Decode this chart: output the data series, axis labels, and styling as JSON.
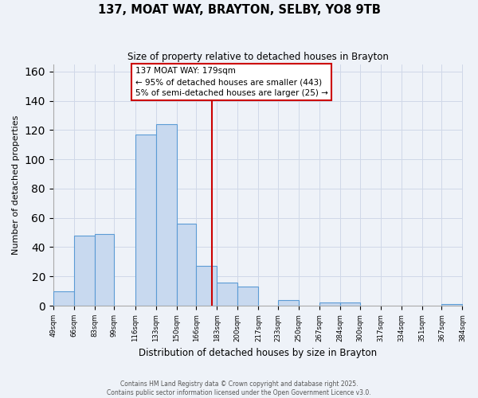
{
  "title": "137, MOAT WAY, BRAYTON, SELBY, YO8 9TB",
  "subtitle": "Size of property relative to detached houses in Brayton",
  "xlabel": "Distribution of detached houses by size in Brayton",
  "ylabel": "Number of detached properties",
  "bar_edges": [
    49,
    66,
    83,
    99,
    116,
    133,
    150,
    166,
    183,
    200,
    217,
    233,
    250,
    267,
    284,
    300,
    317,
    334,
    351,
    367,
    384
  ],
  "bar_heights": [
    10,
    48,
    49,
    0,
    117,
    124,
    56,
    27,
    16,
    13,
    0,
    4,
    0,
    2,
    2,
    0,
    0,
    0,
    0,
    1
  ],
  "bar_color": "#c8d9ef",
  "bar_edge_color": "#5b9bd5",
  "vline_x": 179,
  "vline_color": "#cc0000",
  "annotation_title": "137 MOAT WAY: 179sqm",
  "annotation_line1": "← 95% of detached houses are smaller (443)",
  "annotation_line2": "5% of semi-detached houses are larger (25) →",
  "annotation_box_color": "#ffffff",
  "annotation_box_edge_color": "#cc0000",
  "ylim": [
    0,
    165
  ],
  "yticks": [
    0,
    20,
    40,
    60,
    80,
    100,
    120,
    140,
    160
  ],
  "tick_labels": [
    "49sqm",
    "66sqm",
    "83sqm",
    "99sqm",
    "116sqm",
    "133sqm",
    "150sqm",
    "166sqm",
    "183sqm",
    "200sqm",
    "217sqm",
    "233sqm",
    "250sqm",
    "267sqm",
    "284sqm",
    "300sqm",
    "317sqm",
    "334sqm",
    "351sqm",
    "367sqm",
    "384sqm"
  ],
  "footnote1": "Contains HM Land Registry data © Crown copyright and database right 2025.",
  "footnote2": "Contains public sector information licensed under the Open Government Licence v3.0.",
  "grid_color": "#d0d8e8",
  "background_color": "#eef2f8"
}
